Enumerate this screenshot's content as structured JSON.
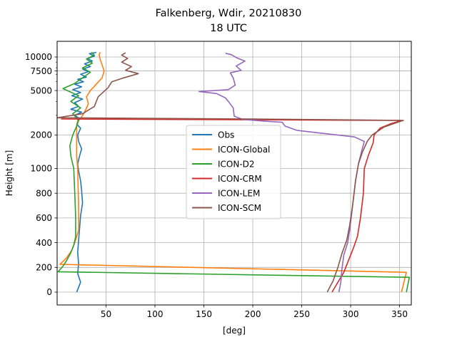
{
  "chart_data": {
    "type": "line",
    "title": "Falkenberg, Wdir, 20210830",
    "subtitle": "18 UTC",
    "xlabel": "[deg]",
    "ylabel": "Height [m]",
    "xlim": [
      0,
      362
    ],
    "x_ticks": [
      50,
      100,
      150,
      200,
      250,
      300,
      350
    ],
    "y_scale": "piecewise: linear 0–1000 m, logarithmic above 1000 m",
    "y_ticks": [
      0,
      200,
      400,
      600,
      800,
      1000,
      2000,
      5000,
      7500,
      10000
    ],
    "grid": true,
    "legend_position": "center",
    "series": [
      {
        "name": "Obs",
        "color": "#1f77b4",
        "points": [
          [
            20,
            0
          ],
          [
            22,
            40
          ],
          [
            24,
            80
          ],
          [
            21,
            150
          ],
          [
            22,
            230
          ],
          [
            21,
            320
          ],
          [
            22,
            420
          ],
          [
            23,
            520
          ],
          [
            24,
            620
          ],
          [
            26,
            720
          ],
          [
            25,
            820
          ],
          [
            24,
            900
          ],
          [
            22,
            980
          ],
          [
            21,
            1100
          ],
          [
            23,
            1300
          ],
          [
            25,
            1500
          ],
          [
            22,
            1750
          ],
          [
            21,
            2000
          ],
          [
            24,
            2300
          ],
          [
            20,
            2500
          ],
          [
            23,
            2800
          ],
          [
            18,
            3000
          ],
          [
            25,
            3200
          ],
          [
            14,
            3400
          ],
          [
            22,
            3600
          ],
          [
            18,
            3900
          ],
          [
            26,
            4200
          ],
          [
            15,
            4500
          ],
          [
            24,
            4800
          ],
          [
            16,
            5100
          ],
          [
            25,
            5400
          ],
          [
            18,
            5700
          ],
          [
            27,
            6000
          ],
          [
            21,
            6300
          ],
          [
            30,
            6600
          ],
          [
            24,
            7000
          ],
          [
            32,
            7400
          ],
          [
            26,
            7800
          ],
          [
            34,
            8200
          ],
          [
            28,
            8700
          ],
          [
            36,
            9200
          ],
          [
            31,
            9700
          ],
          [
            38,
            10200
          ],
          [
            33,
            10700
          ],
          [
            40,
            11000
          ]
        ]
      },
      {
        "name": "ICON-Global",
        "color": "#ff7f0e",
        "points": [
          [
            352,
            0
          ],
          [
            357,
            160
          ],
          [
            3,
            225
          ],
          [
            10,
            280
          ],
          [
            15,
            340
          ],
          [
            18,
            400
          ],
          [
            20,
            450
          ],
          [
            22,
            500
          ],
          [
            22,
            700
          ],
          [
            21,
            1000
          ],
          [
            20,
            1300
          ],
          [
            20,
            1700
          ],
          [
            20,
            2000
          ],
          [
            20,
            2400
          ],
          [
            21,
            2700
          ],
          [
            24,
            2800
          ],
          [
            28,
            3200
          ],
          [
            32,
            3800
          ],
          [
            30,
            4400
          ],
          [
            34,
            5000
          ],
          [
            40,
            5700
          ],
          [
            46,
            6500
          ],
          [
            48,
            7500
          ],
          [
            46,
            8500
          ],
          [
            44,
            9500
          ],
          [
            43,
            10500
          ],
          [
            44,
            11000
          ]
        ]
      },
      {
        "name": "ICON-D2",
        "color": "#2ca02c",
        "points": [
          [
            357,
            0
          ],
          [
            360,
            120
          ],
          [
            1,
            165
          ],
          [
            6,
            210
          ],
          [
            10,
            260
          ],
          [
            14,
            320
          ],
          [
            17,
            380
          ],
          [
            19,
            450
          ],
          [
            19,
            600
          ],
          [
            18,
            800
          ],
          [
            17,
            1000
          ],
          [
            14,
            1300
          ],
          [
            13,
            1600
          ],
          [
            16,
            2000
          ],
          [
            20,
            2400
          ],
          [
            22,
            2700
          ],
          [
            16,
            3100
          ],
          [
            24,
            3500
          ],
          [
            14,
            4000
          ],
          [
            22,
            4500
          ],
          [
            6,
            5200
          ],
          [
            18,
            5800
          ],
          [
            26,
            6500
          ],
          [
            34,
            7300
          ],
          [
            26,
            8000
          ],
          [
            36,
            8800
          ],
          [
            30,
            9600
          ],
          [
            38,
            10400
          ],
          [
            35,
            11000
          ]
        ]
      },
      {
        "name": "ICON-CRM",
        "color": "#d62728",
        "points": [
          [
            281,
            0
          ],
          [
            287,
            80
          ],
          [
            293,
            160
          ],
          [
            298,
            260
          ],
          [
            303,
            360
          ],
          [
            307,
            450
          ],
          [
            310,
            600
          ],
          [
            313,
            800
          ],
          [
            314,
            1000
          ],
          [
            318,
            1300
          ],
          [
            323,
            1700
          ],
          [
            324,
            2000
          ],
          [
            330,
            2300
          ],
          [
            340,
            2500
          ],
          [
            352,
            2700
          ],
          [
            4,
            2780
          ]
        ]
      },
      {
        "name": "ICON-LEM",
        "color": "#9467bd",
        "points": [
          [
            288,
            0
          ],
          [
            290,
            80
          ],
          [
            291,
            180
          ],
          [
            293,
            300
          ],
          [
            297,
            400
          ],
          [
            299,
            500
          ],
          [
            302,
            700
          ],
          [
            305,
            900
          ],
          [
            308,
            1100
          ],
          [
            311,
            1400
          ],
          [
            314,
            1750
          ],
          [
            304,
            1920
          ],
          [
            275,
            2050
          ],
          [
            245,
            2200
          ],
          [
            233,
            2400
          ],
          [
            230,
            2600
          ],
          [
            215,
            2650
          ],
          [
            190,
            2750
          ],
          [
            181,
            2950
          ],
          [
            180,
            3500
          ],
          [
            175,
            4000
          ],
          [
            172,
            4300
          ],
          [
            163,
            4700
          ],
          [
            145,
            4900
          ],
          [
            175,
            5100
          ],
          [
            182,
            5600
          ],
          [
            180,
            6500
          ],
          [
            177,
            7200
          ],
          [
            188,
            7600
          ],
          [
            183,
            8300
          ],
          [
            192,
            9200
          ],
          [
            184,
            9800
          ],
          [
            178,
            10500
          ],
          [
            172,
            10800
          ]
        ]
      },
      {
        "name": "ICON-SCM",
        "color": "#8c564b",
        "points": [
          [
            276,
            0
          ],
          [
            282,
            90
          ],
          [
            287,
            200
          ],
          [
            291,
            310
          ],
          [
            296,
            420
          ],
          [
            299,
            540
          ],
          [
            302,
            700
          ],
          [
            305,
            900
          ],
          [
            308,
            1100
          ],
          [
            312,
            1400
          ],
          [
            317,
            1750
          ],
          [
            322,
            2000
          ],
          [
            334,
            2350
          ],
          [
            348,
            2600
          ],
          [
            354,
            2700
          ],
          [
            200,
            2780
          ],
          [
            0,
            2850
          ],
          [
            26,
            3100
          ],
          [
            38,
            3600
          ],
          [
            42,
            4400
          ],
          [
            52,
            5300
          ],
          [
            56,
            6000
          ],
          [
            68,
            6500
          ],
          [
            83,
            7100
          ],
          [
            70,
            7600
          ],
          [
            76,
            8200
          ],
          [
            66,
            9000
          ],
          [
            72,
            9700
          ],
          [
            66,
            10400
          ],
          [
            70,
            10900
          ]
        ]
      }
    ]
  }
}
